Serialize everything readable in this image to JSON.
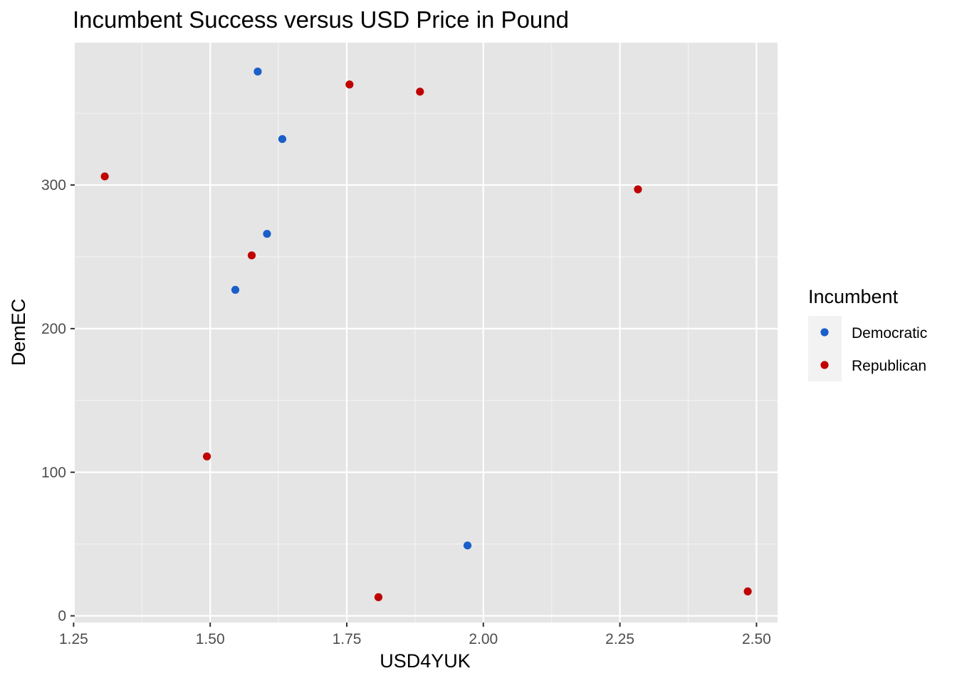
{
  "chart_data": {
    "type": "scatter",
    "title": "Incumbent Success versus USD Price in Pound",
    "xlabel": "USD4YUK",
    "ylabel": "DemEC",
    "xlim": [
      1.25,
      2.5
    ],
    "ylim": [
      0,
      380
    ],
    "x_ticks": [
      "1.25",
      "1.50",
      "1.75",
      "2.00",
      "2.25",
      "2.50"
    ],
    "y_ticks": [
      "0",
      "100",
      "200",
      "300"
    ],
    "grid": true,
    "legend": {
      "title": "Incumbent",
      "placement": "right"
    },
    "series": [
      {
        "name": "Democratic",
        "color": "#1b5fc9",
        "points": [
          {
            "x": 1.587,
            "y": 379
          },
          {
            "x": 1.632,
            "y": 332
          },
          {
            "x": 1.604,
            "y": 266
          },
          {
            "x": 1.546,
            "y": 227
          },
          {
            "x": 1.971,
            "y": 49
          }
        ]
      },
      {
        "name": "Republican",
        "color": "#c00000",
        "points": [
          {
            "x": 1.755,
            "y": 370
          },
          {
            "x": 1.884,
            "y": 365
          },
          {
            "x": 1.307,
            "y": 306
          },
          {
            "x": 2.283,
            "y": 297
          },
          {
            "x": 1.576,
            "y": 251
          },
          {
            "x": 1.494,
            "y": 111
          },
          {
            "x": 1.808,
            "y": 13
          },
          {
            "x": 2.484,
            "y": 17
          }
        ]
      }
    ]
  }
}
